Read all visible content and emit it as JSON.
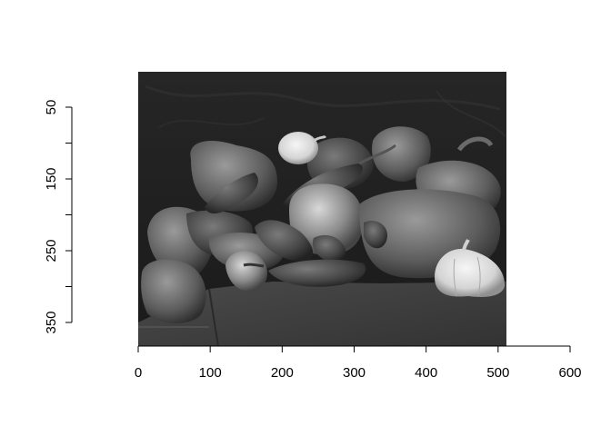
{
  "chart_data": {
    "type": "image",
    "image_extent": {
      "x": [
        0,
        512
      ],
      "y": [
        48,
        384
      ]
    },
    "xlim": [
      0,
      600
    ],
    "ylim": [
      48,
      384
    ],
    "y_reversed": true,
    "x_axis": {
      "ticks": [
        0,
        100,
        200,
        300,
        400,
        500,
        600
      ],
      "tick_labels": [
        "0",
        "100",
        "200",
        "300",
        "400",
        "500",
        "600"
      ]
    },
    "y_axis": {
      "ticks": [
        50,
        100,
        150,
        200,
        250,
        300,
        350
      ],
      "tick_labels": [
        "50",
        "",
        "150",
        "",
        "250",
        "",
        "350"
      ]
    },
    "title": "",
    "xlabel": "",
    "ylabel": "",
    "colors": {
      "background": "#2a2a2a",
      "axis": "#000000"
    }
  }
}
